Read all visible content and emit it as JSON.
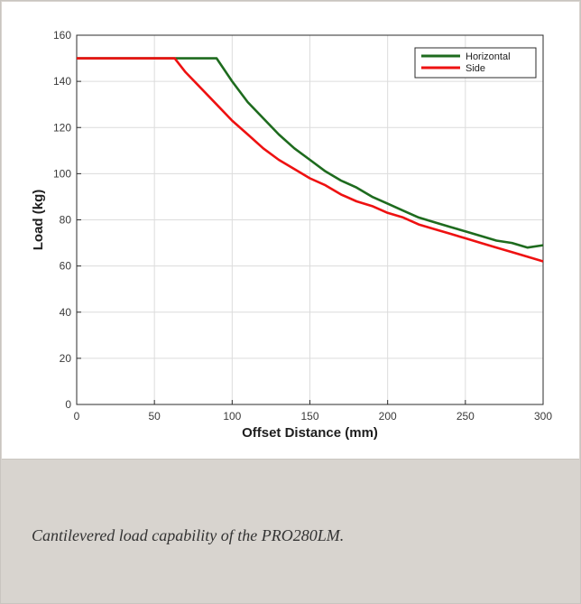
{
  "caption": "Cantilevered load capability of the PRO280LM.",
  "chart_data": {
    "type": "line",
    "xlabel": "Offset Distance (mm)",
    "ylabel": "Load (kg)",
    "xlim": [
      0,
      300
    ],
    "ylim": [
      0,
      160
    ],
    "xticks": [
      0,
      50,
      100,
      150,
      200,
      250,
      300
    ],
    "yticks": [
      0,
      20,
      40,
      60,
      80,
      100,
      120,
      140,
      160
    ],
    "grid": true,
    "legend_position": "top-right",
    "series": [
      {
        "name": "Horizontal",
        "color": "#1e6b1e",
        "x": [
          0,
          20,
          40,
          60,
          80,
          90,
          100,
          110,
          120,
          130,
          140,
          150,
          160,
          170,
          180,
          190,
          200,
          210,
          220,
          230,
          240,
          250,
          260,
          270,
          280,
          290,
          300
        ],
        "y": [
          150,
          150,
          150,
          150,
          150,
          150,
          140,
          131,
          124,
          117,
          111,
          106,
          101,
          97,
          94,
          90,
          87,
          84,
          81,
          79,
          77,
          75,
          73,
          71,
          70,
          68,
          69
        ]
      },
      {
        "name": "Side",
        "color": "#ee1111",
        "x": [
          0,
          20,
          40,
          63,
          70,
          80,
          90,
          100,
          110,
          120,
          130,
          140,
          150,
          160,
          170,
          180,
          190,
          200,
          210,
          220,
          230,
          240,
          250,
          260,
          270,
          280,
          290,
          300
        ],
        "y": [
          150,
          150,
          150,
          150,
          144,
          137,
          130,
          123,
          117,
          111,
          106,
          102,
          98,
          95,
          91,
          88,
          86,
          83,
          81,
          78,
          76,
          74,
          72,
          70,
          68,
          66,
          64,
          62
        ]
      }
    ]
  }
}
